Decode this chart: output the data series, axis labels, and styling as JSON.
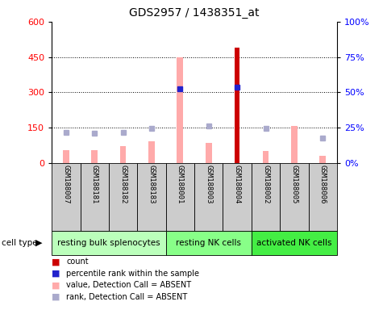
{
  "title": "GDS2957 / 1438351_at",
  "samples": [
    "GSM188007",
    "GSM188181",
    "GSM188182",
    "GSM188183",
    "GSM188001",
    "GSM188003",
    "GSM188004",
    "GSM188002",
    "GSM188005",
    "GSM188006"
  ],
  "cell_types": [
    {
      "label": "resting bulk splenocytes",
      "start": 0,
      "end": 3,
      "color": "#bbffbb"
    },
    {
      "label": "resting NK cells",
      "start": 4,
      "end": 6,
      "color": "#88ff88"
    },
    {
      "label": "activated NK cells",
      "start": 7,
      "end": 9,
      "color": "#44ee44"
    }
  ],
  "count_values": [
    null,
    null,
    null,
    null,
    null,
    null,
    490,
    null,
    null,
    null
  ],
  "percentile_rank_values": [
    null,
    null,
    null,
    null,
    315,
    null,
    320,
    null,
    null,
    null
  ],
  "absent_value_bars": [
    55,
    55,
    70,
    90,
    450,
    85,
    null,
    50,
    155,
    30
  ],
  "absent_rank_dots": [
    130,
    125,
    130,
    145,
    null,
    155,
    null,
    145,
    null,
    105
  ],
  "ylim_left": [
    0,
    600
  ],
  "ylim_right": [
    0,
    100
  ],
  "yticks_left": [
    0,
    150,
    300,
    450,
    600
  ],
  "yticks_right": [
    0,
    25,
    50,
    75,
    100
  ],
  "color_count": "#cc0000",
  "color_percentile": "#2222cc",
  "color_absent_value": "#ffaaaa",
  "color_absent_rank": "#aaaacc",
  "bg_sample_label": "#cccccc",
  "bg_plot": "#ffffff",
  "legend_items": [
    {
      "label": "count",
      "color": "#cc0000"
    },
    {
      "label": "percentile rank within the sample",
      "color": "#2222cc"
    },
    {
      "label": "value, Detection Call = ABSENT",
      "color": "#ffaaaa"
    },
    {
      "label": "rank, Detection Call = ABSENT",
      "color": "#aaaacc"
    }
  ]
}
